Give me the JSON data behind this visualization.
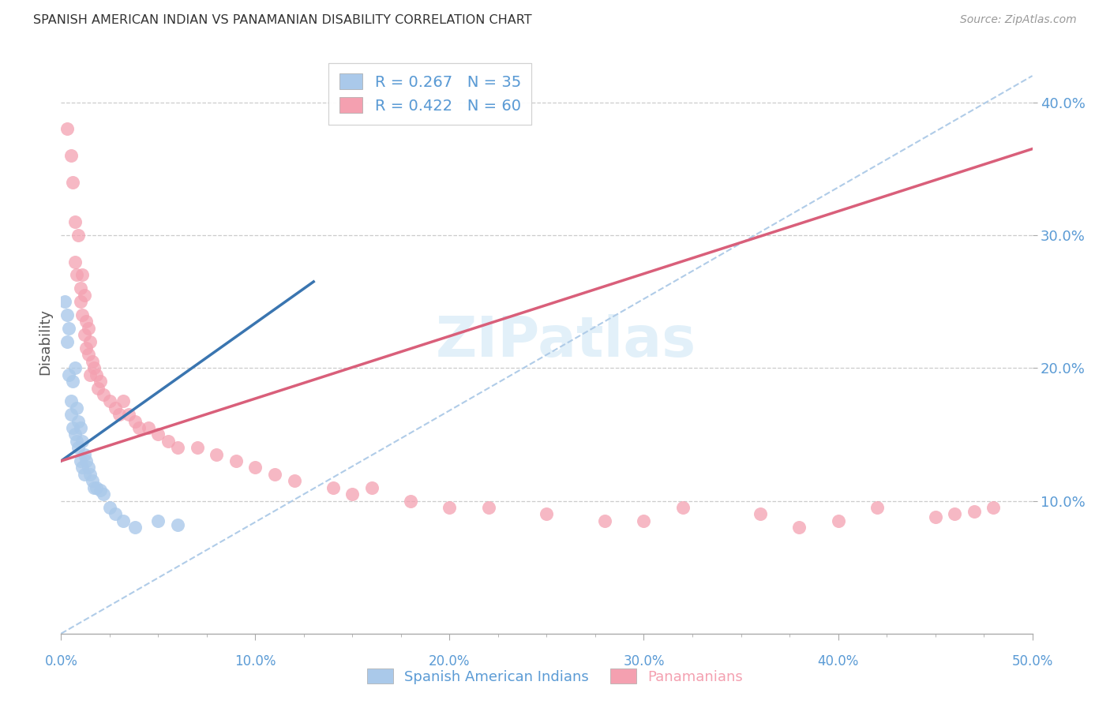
{
  "title": "SPANISH AMERICAN INDIAN VS PANAMANIAN DISABILITY CORRELATION CHART",
  "source": "Source: ZipAtlas.com",
  "tick_color": "#5b9bd5",
  "ylabel": "Disability",
  "xlim": [
    0.0,
    0.5
  ],
  "ylim": [
    0.0,
    0.44
  ],
  "xticks": [
    0.0,
    0.1,
    0.2,
    0.3,
    0.4,
    0.5
  ],
  "yticks": [
    0.1,
    0.2,
    0.3,
    0.4
  ],
  "blue_color": "#aac9ea",
  "pink_color": "#f4a0b0",
  "blue_line_color": "#3a75b0",
  "pink_line_color": "#d95f7a",
  "dashed_line_color": "#b0cce8",
  "background_color": "#ffffff",
  "grid_color": "#cccccc",
  "blue_scatter_x": [
    0.002,
    0.003,
    0.003,
    0.004,
    0.004,
    0.005,
    0.005,
    0.006,
    0.006,
    0.007,
    0.007,
    0.008,
    0.008,
    0.009,
    0.009,
    0.01,
    0.01,
    0.011,
    0.011,
    0.012,
    0.012,
    0.013,
    0.014,
    0.015,
    0.016,
    0.017,
    0.018,
    0.02,
    0.022,
    0.025,
    0.028,
    0.032,
    0.038,
    0.05,
    0.06
  ],
  "blue_scatter_y": [
    0.25,
    0.24,
    0.22,
    0.23,
    0.195,
    0.175,
    0.165,
    0.19,
    0.155,
    0.2,
    0.15,
    0.17,
    0.145,
    0.16,
    0.14,
    0.155,
    0.13,
    0.145,
    0.125,
    0.135,
    0.12,
    0.13,
    0.125,
    0.12,
    0.115,
    0.11,
    0.11,
    0.108,
    0.105,
    0.095,
    0.09,
    0.085,
    0.08,
    0.085,
    0.082
  ],
  "pink_scatter_x": [
    0.003,
    0.005,
    0.006,
    0.007,
    0.007,
    0.008,
    0.009,
    0.01,
    0.01,
    0.011,
    0.011,
    0.012,
    0.012,
    0.013,
    0.013,
    0.014,
    0.014,
    0.015,
    0.015,
    0.016,
    0.017,
    0.018,
    0.019,
    0.02,
    0.022,
    0.025,
    0.028,
    0.03,
    0.032,
    0.035,
    0.038,
    0.04,
    0.045,
    0.05,
    0.055,
    0.06,
    0.07,
    0.08,
    0.09,
    0.1,
    0.11,
    0.12,
    0.14,
    0.15,
    0.16,
    0.18,
    0.2,
    0.22,
    0.25,
    0.28,
    0.3,
    0.32,
    0.36,
    0.38,
    0.4,
    0.42,
    0.45,
    0.46,
    0.47,
    0.48
  ],
  "pink_scatter_y": [
    0.38,
    0.36,
    0.34,
    0.31,
    0.28,
    0.27,
    0.3,
    0.26,
    0.25,
    0.27,
    0.24,
    0.255,
    0.225,
    0.235,
    0.215,
    0.23,
    0.21,
    0.22,
    0.195,
    0.205,
    0.2,
    0.195,
    0.185,
    0.19,
    0.18,
    0.175,
    0.17,
    0.165,
    0.175,
    0.165,
    0.16,
    0.155,
    0.155,
    0.15,
    0.145,
    0.14,
    0.14,
    0.135,
    0.13,
    0.125,
    0.12,
    0.115,
    0.11,
    0.105,
    0.11,
    0.1,
    0.095,
    0.095,
    0.09,
    0.085,
    0.085,
    0.095,
    0.09,
    0.08,
    0.085,
    0.095,
    0.088,
    0.09,
    0.092,
    0.095
  ],
  "blue_line_x": [
    0.0,
    0.13
  ],
  "blue_line_y": [
    0.13,
    0.265
  ],
  "pink_line_x": [
    0.0,
    0.5
  ],
  "pink_line_y": [
    0.13,
    0.365
  ],
  "dash_line_x": [
    0.0,
    0.5
  ],
  "dash_line_y": [
    0.0,
    0.42
  ]
}
